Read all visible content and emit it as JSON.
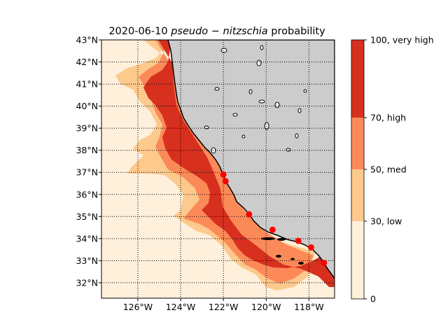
{
  "title": {
    "date": "2020-06-10",
    "species": "pseudo − nitzschia",
    "suffix": "probability"
  },
  "map": {
    "projection": "lat-lon",
    "lon_range": [
      -127.7,
      -116.8
    ],
    "lat_range": [
      31.3,
      43.0
    ],
    "lat_ticks": [
      {
        "value": 43,
        "label": "43°N"
      },
      {
        "value": 42,
        "label": "42°N"
      },
      {
        "value": 41,
        "label": "41°N"
      },
      {
        "value": 40,
        "label": "40°N"
      },
      {
        "value": 39,
        "label": "39°N"
      },
      {
        "value": 38,
        "label": "38°N"
      },
      {
        "value": 37,
        "label": "37°N"
      },
      {
        "value": 36,
        "label": "36°N"
      },
      {
        "value": 35,
        "label": "35°N"
      },
      {
        "value": 34,
        "label": "34°N"
      },
      {
        "value": 33,
        "label": "33°N"
      },
      {
        "value": 32,
        "label": "32°N"
      }
    ],
    "lon_ticks": [
      {
        "value": -126,
        "label": "126°W"
      },
      {
        "value": -124,
        "label": "124°W"
      },
      {
        "value": -122,
        "label": "122°W"
      },
      {
        "value": -120,
        "label": "120°W"
      },
      {
        "value": -118,
        "label": "118°W"
      }
    ],
    "grid": true,
    "land_color": "#cccccc",
    "coast_color": "#000000",
    "station_color": "#ff0000",
    "stations": [
      {
        "lon": -122.0,
        "lat": 36.9
      },
      {
        "lon": -121.9,
        "lat": 36.6
      },
      {
        "lon": -120.8,
        "lat": 35.1
      },
      {
        "lon": -119.7,
        "lat": 34.4
      },
      {
        "lon": -118.5,
        "lat": 33.9
      },
      {
        "lon": -117.9,
        "lat": 33.6
      },
      {
        "lon": -117.3,
        "lat": 32.9
      }
    ]
  },
  "colorbar": {
    "segments": [
      {
        "from": 0,
        "to": 30,
        "color": "#fff0dc"
      },
      {
        "from": 30,
        "to": 50,
        "color": "#fdc98d"
      },
      {
        "from": 50,
        "to": 70,
        "color": "#fc8a59"
      },
      {
        "from": 70,
        "to": 100,
        "color": "#d7301f"
      }
    ],
    "ticks": [
      {
        "value": 0,
        "label": "0"
      },
      {
        "value": 30,
        "label": "30, low"
      },
      {
        "value": 50,
        "label": "50, med"
      },
      {
        "value": 70,
        "label": "70, high"
      },
      {
        "value": 100,
        "label": "100, very high"
      }
    ]
  }
}
